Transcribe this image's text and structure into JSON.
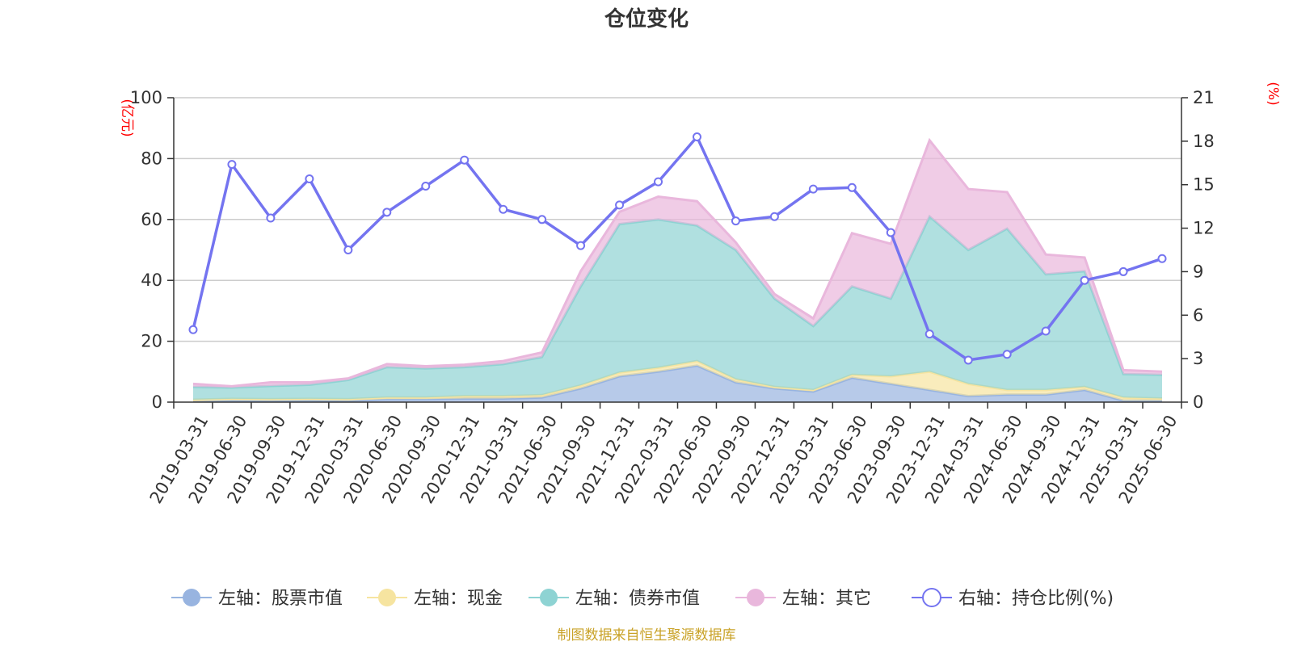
{
  "chart_data": {
    "type": "area",
    "title": "仓位变化",
    "left_axis_unit": "(亿元)",
    "right_axis_unit": "(%)",
    "left_ylim": [
      0,
      100
    ],
    "left_ticks": [
      "0",
      "20",
      "40",
      "60",
      "80",
      "100"
    ],
    "right_ylim": [
      0,
      21
    ],
    "right_ticks": [
      "0",
      "3",
      "6",
      "9",
      "12",
      "15",
      "18",
      "21"
    ],
    "categories": [
      "2019-03-31",
      "2019-06-30",
      "2019-09-30",
      "2019-12-31",
      "2020-03-31",
      "2020-06-30",
      "2020-09-30",
      "2020-12-31",
      "2021-03-31",
      "2021-06-30",
      "2021-09-30",
      "2021-12-31",
      "2022-03-31",
      "2022-06-30",
      "2022-09-30",
      "2022-12-31",
      "2023-03-31",
      "2023-06-30",
      "2023-09-30",
      "2023-12-31",
      "2024-03-31",
      "2024-06-30",
      "2024-09-30",
      "2024-12-31",
      "2025-03-31",
      "2025-06-30"
    ],
    "stacked_series": [
      {
        "name": "左轴：股票市值",
        "color": "#98b4e0",
        "values": [
          0.3,
          0.6,
          0.5,
          0.6,
          0.5,
          1.0,
          1.0,
          1.2,
          1.2,
          1.5,
          4.5,
          8.5,
          10.0,
          12.0,
          6.5,
          4.5,
          3.5,
          8.0,
          6.0,
          4.0,
          2.0,
          2.5,
          2.5,
          4.0,
          0.5,
          0.5
        ]
      },
      {
        "name": "左轴：现金",
        "color": "#f6e4a0",
        "values": [
          0.5,
          0.5,
          0.5,
          0.5,
          0.5,
          0.5,
          0.5,
          0.8,
          0.8,
          0.8,
          1.0,
          1.2,
          1.3,
          1.5,
          1.0,
          0.5,
          0.5,
          1.0,
          2.5,
          6.0,
          4.0,
          1.5,
          1.5,
          1.0,
          1.0,
          0.7
        ]
      },
      {
        "name": "左轴：债券市值",
        "color": "#8ed3d3",
        "values": [
          4.2,
          3.7,
          4.3,
          4.6,
          6.3,
          10.0,
          9.6,
          9.5,
          10.5,
          12.5,
          32.5,
          48.8,
          48.7,
          44.5,
          42.5,
          29.0,
          21.0,
          29.0,
          25.5,
          51.0,
          44.0,
          53.0,
          38.0,
          38.0,
          7.7,
          7.8
        ]
      },
      {
        "name": "左轴：其它",
        "color": "#e9b7dc",
        "values": [
          1.0,
          0.4,
          1.2,
          0.8,
          0.5,
          1.0,
          0.7,
          0.8,
          1.0,
          1.5,
          5.0,
          4.0,
          7.5,
          8.0,
          2.5,
          1.5,
          2.5,
          17.5,
          18.0,
          25.0,
          20.0,
          12.0,
          6.5,
          4.5,
          1.3,
          1.0
        ]
      }
    ],
    "line_series": {
      "name": "右轴：持仓比例(%)",
      "color": "#7474f0",
      "values": [
        5.0,
        16.4,
        12.7,
        15.4,
        10.5,
        13.1,
        14.9,
        16.7,
        13.3,
        12.6,
        10.8,
        13.6,
        15.2,
        18.3,
        12.5,
        12.8,
        14.7,
        14.8,
        11.7,
        4.7,
        2.9,
        3.3,
        4.9,
        8.4,
        9.0,
        9.9
      ]
    },
    "legend_position": "bottom",
    "gridlines": true,
    "source_note": "制图数据来自恒生聚源数据库"
  }
}
